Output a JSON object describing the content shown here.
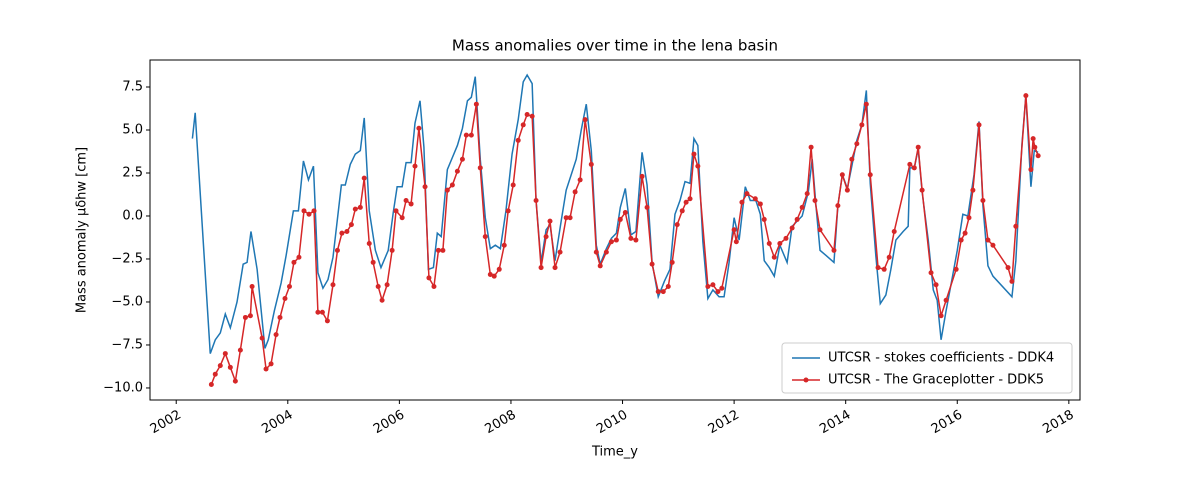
{
  "chart_data": {
    "type": "line",
    "title": "Mass anomalies over time in the lena basin",
    "x_label": "Time_y",
    "y_label": "Mass anomaly   μδhw [cm]",
    "xlim": [
      2001.53,
      2018.2
    ],
    "ylim": [
      -10.7,
      9.07
    ],
    "xticks": [
      2002,
      2004,
      2006,
      2008,
      2010,
      2012,
      2014,
      2016,
      2018
    ],
    "yticks": [
      {
        "value": -10,
        "label": "−10.0"
      },
      {
        "value": -7.5,
        "label": "−7.5"
      },
      {
        "value": -5,
        "label": "−5.0"
      },
      {
        "value": -2.5,
        "label": "−2.5"
      },
      {
        "value": 0,
        "label": "0.0"
      },
      {
        "value": 2.5,
        "label": "2.5"
      },
      {
        "value": 5,
        "label": "5.0"
      },
      {
        "value": 7.5,
        "label": "7.5"
      }
    ],
    "legend": "lower right",
    "series": [
      {
        "name": "UTCSR - stokes coefficients - DDK4",
        "color": "#1f77b4",
        "marker": false,
        "x": [
          2002.29,
          2002.34,
          2002.61,
          2002.7,
          2002.79,
          2002.88,
          2002.97,
          2003.09,
          2003.2,
          2003.27,
          2003.34,
          2003.45,
          2003.59,
          2003.65,
          2003.76,
          2003.88,
          2003.97,
          2004.1,
          2004.19,
          2004.28,
          2004.37,
          2004.46,
          2004.54,
          2004.63,
          2004.72,
          2004.81,
          2004.96,
          2005.03,
          2005.12,
          2005.21,
          2005.3,
          2005.37,
          2005.46,
          2005.57,
          2005.67,
          2005.8,
          2005.89,
          2005.96,
          2006.05,
          2006.12,
          2006.21,
          2006.28,
          2006.37,
          2006.44,
          2006.52,
          2006.61,
          2006.68,
          2006.75,
          2006.86,
          2006.95,
          2007.04,
          2007.13,
          2007.22,
          2007.29,
          2007.36,
          2007.45,
          2007.54,
          2007.63,
          2007.72,
          2007.81,
          2007.91,
          2008.02,
          2008.13,
          2008.22,
          2008.29,
          2008.38,
          2008.45,
          2008.54,
          2008.63,
          2008.7,
          2008.79,
          2008.9,
          2008.99,
          2009.08,
          2009.17,
          2009.26,
          2009.35,
          2009.44,
          2009.53,
          2009.6,
          2009.71,
          2009.8,
          2009.89,
          2009.96,
          2010.05,
          2010.15,
          2010.24,
          2010.35,
          2010.44,
          2010.53,
          2010.64,
          2010.75,
          2010.85,
          2010.94,
          2011.03,
          2011.12,
          2011.21,
          2011.28,
          2011.35,
          2011.44,
          2011.53,
          2011.62,
          2011.73,
          2011.82,
          2011.91,
          2012.0,
          2012.09,
          2012.2,
          2012.29,
          2012.39,
          2012.47,
          2012.54,
          2012.63,
          2012.72,
          2012.82,
          2012.95,
          2013.04,
          2013.13,
          2013.22,
          2013.33,
          2013.4,
          2013.47,
          2013.54,
          2013.65,
          2013.79,
          2013.86,
          2013.94,
          2014.03,
          2014.11,
          2014.2,
          2014.29,
          2014.37,
          2014.44,
          2014.54,
          2014.62,
          2014.72,
          2014.81,
          2014.9,
          2015.03,
          2015.12,
          2015.15,
          2015.23,
          2015.3,
          2015.37,
          2015.48,
          2015.57,
          2015.64,
          2015.71,
          2015.8,
          2015.91,
          2016.0,
          2016.1,
          2016.19,
          2016.3,
          2016.39,
          2016.46,
          2016.55,
          2016.64,
          2016.98,
          2017.05,
          2017.16,
          2017.23,
          2017.32,
          2017.38,
          2017.45
        ],
        "values": [
          4.5,
          6.0,
          -8.0,
          -7.2,
          -6.8,
          -5.7,
          -6.5,
          -5.0,
          -2.8,
          -2.7,
          -0.9,
          -3.1,
          -7.7,
          -7.2,
          -5.5,
          -3.9,
          -2.3,
          0.3,
          0.3,
          3.2,
          2.1,
          2.9,
          -3.3,
          -4.2,
          -3.7,
          -2.4,
          1.8,
          1.8,
          3.0,
          3.6,
          3.8,
          5.7,
          0.3,
          -2.0,
          -3.0,
          -2.0,
          0.2,
          1.7,
          1.7,
          3.1,
          3.1,
          5.4,
          6.7,
          4.0,
          -3.1,
          -3.0,
          -1.0,
          -1.2,
          2.7,
          3.4,
          4.1,
          5.1,
          6.7,
          6.9,
          8.1,
          3.3,
          -0.1,
          -1.9,
          -1.7,
          -1.9,
          0.3,
          3.6,
          5.6,
          7.8,
          8.2,
          7.7,
          0.9,
          -2.7,
          -0.8,
          -0.5,
          -2.6,
          -0.3,
          1.5,
          2.4,
          3.3,
          5.0,
          6.5,
          3.8,
          -1.7,
          -2.8,
          -1.9,
          -1.3,
          -1.0,
          0.5,
          1.6,
          -1.1,
          -0.9,
          3.7,
          1.8,
          -2.7,
          -4.7,
          -3.8,
          -3.1,
          0.1,
          0.9,
          2.0,
          1.9,
          4.5,
          4.1,
          -1.5,
          -4.8,
          -4.3,
          -4.7,
          -4.7,
          -2.7,
          -0.1,
          -1.4,
          1.7,
          0.9,
          0.9,
          0.1,
          -2.6,
          -3.0,
          -3.5,
          -1.7,
          -2.7,
          -0.6,
          -0.3,
          0.0,
          1.4,
          3.3,
          0.5,
          -2.0,
          -2.3,
          -2.7,
          0.6,
          2.4,
          1.6,
          2.9,
          4.4,
          5.3,
          7.3,
          1.9,
          -2.3,
          -5.1,
          -4.6,
          -3.1,
          -1.4,
          -0.9,
          -0.6,
          2.8,
          2.8,
          3.9,
          1.4,
          -1.4,
          -4.3,
          -4.9,
          -7.2,
          -5.5,
          -3.6,
          -2.0,
          0.1,
          0.0,
          2.4,
          5.5,
          0.6,
          -2.9,
          -3.5,
          -4.7,
          -2.6,
          4.2,
          7.0,
          1.7,
          3.8,
          3.7
        ]
      },
      {
        "name": "UTCSR - The Graceplotter - DDK5",
        "color": "#d62728",
        "marker": true,
        "x": [
          2002.63,
          2002.7,
          2002.79,
          2002.88,
          2002.97,
          2003.06,
          2003.15,
          2003.24,
          2003.33,
          2003.36,
          2003.54,
          2003.61,
          2003.7,
          2003.79,
          2003.86,
          2003.95,
          2004.03,
          2004.11,
          2004.2,
          2004.29,
          2004.38,
          2004.47,
          2004.54,
          2004.62,
          2004.71,
          2004.81,
          2004.89,
          2004.97,
          2005.06,
          2005.14,
          2005.21,
          2005.3,
          2005.37,
          2005.46,
          2005.53,
          2005.62,
          2005.69,
          2005.78,
          2005.87,
          2005.94,
          2006.05,
          2006.12,
          2006.21,
          2006.28,
          2006.35,
          2006.46,
          2006.53,
          2006.62,
          2006.7,
          2006.78,
          2006.86,
          2006.95,
          2007.04,
          2007.13,
          2007.2,
          2007.29,
          2007.38,
          2007.45,
          2007.54,
          2007.63,
          2007.7,
          2007.79,
          2007.88,
          2007.95,
          2008.04,
          2008.13,
          2008.22,
          2008.29,
          2008.38,
          2008.45,
          2008.54,
          2008.63,
          2008.7,
          2008.79,
          2008.88,
          2008.99,
          2009.06,
          2009.15,
          2009.24,
          2009.33,
          2009.44,
          2009.53,
          2009.6,
          2009.71,
          2009.8,
          2009.89,
          2009.96,
          2010.05,
          2010.15,
          2010.24,
          2010.35,
          2010.44,
          2010.53,
          2010.64,
          2010.73,
          2010.82,
          2010.89,
          2010.98,
          2011.07,
          2011.14,
          2011.21,
          2011.28,
          2011.35,
          2011.53,
          2011.62,
          2011.71,
          2011.78,
          2012.0,
          2012.04,
          2012.14,
          2012.23,
          2012.38,
          2012.47,
          2012.54,
          2012.63,
          2012.72,
          2012.82,
          2012.93,
          2013.04,
          2013.13,
          2013.22,
          2013.31,
          2013.38,
          2013.45,
          2013.54,
          2013.79,
          2013.86,
          2013.94,
          2014.03,
          2014.11,
          2014.2,
          2014.29,
          2014.37,
          2014.44,
          2014.58,
          2014.69,
          2014.78,
          2014.87,
          2015.15,
          2015.23,
          2015.3,
          2015.37,
          2015.53,
          2015.62,
          2015.71,
          2015.8,
          2015.98,
          2016.07,
          2016.14,
          2016.21,
          2016.28,
          2016.39,
          2016.46,
          2016.55,
          2016.64,
          2016.91,
          2016.98,
          2017.05,
          2017.23,
          2017.32,
          2017.36,
          2017.39,
          2017.45
        ],
        "values": [
          -9.8,
          -9.2,
          -8.7,
          -8.0,
          -8.8,
          -9.6,
          -7.8,
          -5.9,
          -5.8,
          -4.1,
          -7.1,
          -8.9,
          -8.6,
          -6.9,
          -5.9,
          -4.8,
          -4.1,
          -2.7,
          -2.4,
          0.3,
          0.1,
          0.3,
          -5.6,
          -5.6,
          -6.1,
          -4.0,
          -2.0,
          -1.0,
          -0.9,
          -0.5,
          0.4,
          0.5,
          2.2,
          -1.6,
          -2.7,
          -4.1,
          -4.9,
          -4.0,
          -2.0,
          0.3,
          -0.1,
          0.9,
          0.7,
          2.9,
          5.1,
          1.7,
          -3.6,
          -4.1,
          -2.0,
          -2.0,
          1.5,
          1.8,
          2.6,
          3.3,
          4.7,
          4.7,
          6.5,
          2.8,
          -1.2,
          -3.4,
          -3.5,
          -3.1,
          -1.7,
          0.3,
          1.8,
          4.4,
          5.3,
          5.9,
          5.8,
          0.9,
          -3.0,
          -1.2,
          -0.3,
          -3.0,
          -2.1,
          -0.1,
          -0.1,
          1.4,
          2.1,
          5.6,
          3.0,
          -2.1,
          -2.9,
          -2.1,
          -1.5,
          -1.4,
          -0.2,
          0.2,
          -1.3,
          -1.4,
          2.3,
          0.5,
          -2.8,
          -4.4,
          -4.4,
          -4.1,
          -2.7,
          -0.5,
          0.3,
          0.8,
          1.0,
          3.6,
          2.9,
          -4.1,
          -4.0,
          -4.4,
          -4.2,
          -0.8,
          -1.5,
          0.8,
          1.3,
          1.0,
          0.7,
          -0.2,
          -1.6,
          -2.4,
          -1.6,
          -1.3,
          -0.7,
          -0.2,
          0.5,
          1.3,
          4.0,
          0.9,
          -0.8,
          -2.0,
          0.6,
          2.4,
          1.5,
          3.3,
          4.2,
          5.3,
          6.5,
          2.4,
          -3.0,
          -3.1,
          -2.4,
          -0.9,
          3.0,
          2.8,
          4.0,
          1.5,
          -3.3,
          -4.0,
          -5.8,
          -4.9,
          -3.1,
          -1.4,
          -1.0,
          -0.1,
          1.5,
          5.3,
          0.9,
          -1.4,
          -1.7,
          -3.0,
          -3.8,
          -0.6,
          7.0,
          2.7,
          4.5,
          4.0,
          3.5
        ]
      }
    ]
  }
}
